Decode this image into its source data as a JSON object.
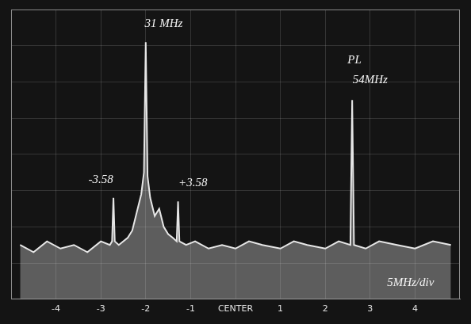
{
  "chart_data": {
    "type": "line",
    "x": [
      -4.8,
      -4.5,
      -4.2,
      -3.9,
      -3.6,
      -3.3,
      -3.0,
      -2.8,
      -2.75,
      -2.72,
      -2.69,
      -2.6,
      -2.4,
      -2.3,
      -2.2,
      -2.1,
      -2.04,
      -2.0,
      -1.96,
      -1.9,
      -1.8,
      -1.7,
      -1.6,
      -1.5,
      -1.4,
      -1.31,
      -1.28,
      -1.25,
      -1.1,
      -0.9,
      -0.6,
      -0.3,
      0,
      0.3,
      0.6,
      1.0,
      1.3,
      1.6,
      2.0,
      2.3,
      2.56,
      2.6,
      2.64,
      2.9,
      3.2,
      3.6,
      4.0,
      4.4,
      4.8
    ],
    "values": [
      1.5,
      1.3,
      1.6,
      1.4,
      1.5,
      1.3,
      1.6,
      1.5,
      1.6,
      2.8,
      1.6,
      1.5,
      1.7,
      1.9,
      2.4,
      2.9,
      3.5,
      7.1,
      3.4,
      2.8,
      2.3,
      2.5,
      2.0,
      1.8,
      1.7,
      1.6,
      2.7,
      1.6,
      1.5,
      1.6,
      1.4,
      1.5,
      1.4,
      1.6,
      1.5,
      1.4,
      1.6,
      1.5,
      1.4,
      1.6,
      1.5,
      5.5,
      1.5,
      1.4,
      1.6,
      1.5,
      1.4,
      1.6,
      1.5
    ],
    "color": "#e6e6e6",
    "xlim": [
      -5,
      5
    ],
    "xticks": [
      -4,
      -3,
      -2,
      -1,
      {
        "value": 0,
        "label": "CENTER"
      },
      1,
      2,
      3,
      4
    ],
    "ylim": [
      0,
      8
    ],
    "yticks": [
      0,
      1,
      2,
      3,
      4,
      5,
      6,
      7,
      8
    ],
    "grid": true,
    "tick_labels": "x",
    "annotations": [
      {
        "text": "31 MHz",
        "x": -1.6,
        "y": 7.6
      },
      {
        "text": "-3.58",
        "x": -3.0,
        "y": 3.3
      },
      {
        "text": "+3.58",
        "x": -0.95,
        "y": 3.2
      },
      {
        "text": "PL",
        "x": 2.65,
        "y": 6.6
      },
      {
        "text": "54MHz",
        "x": 3.0,
        "y": 6.05
      },
      {
        "text": "5MHz/div",
        "x": 3.9,
        "y": 0.45
      }
    ]
  }
}
